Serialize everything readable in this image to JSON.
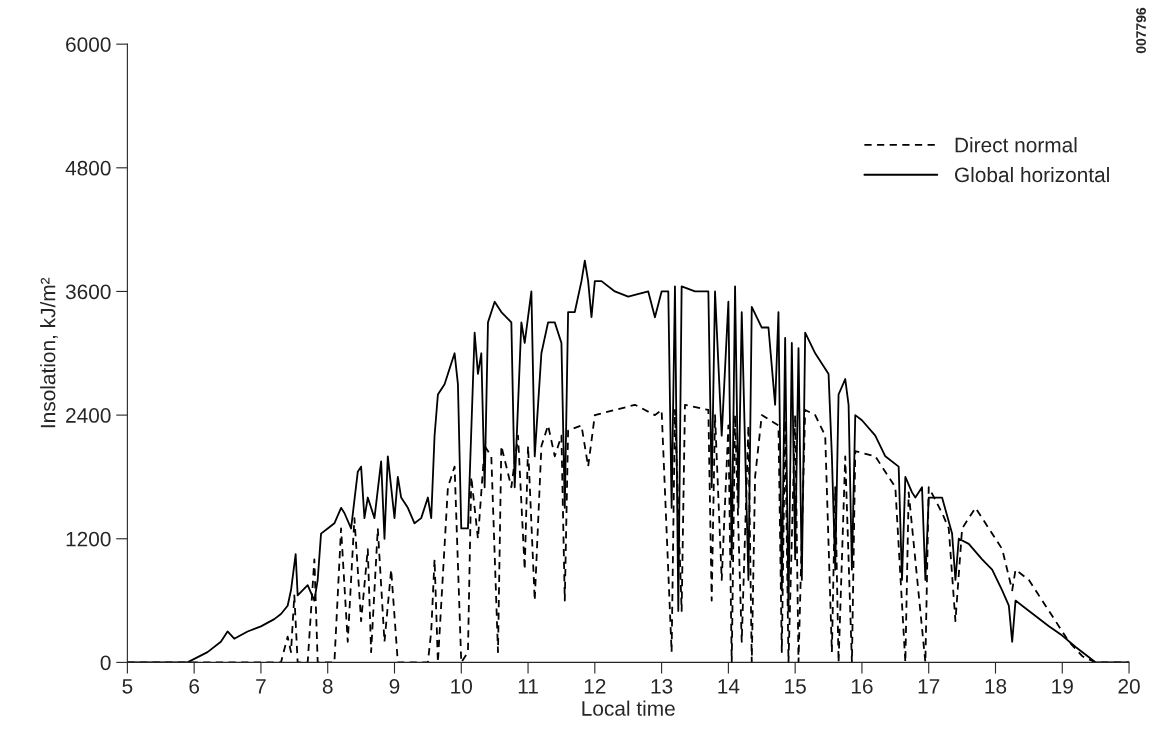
{
  "chart_data": {
    "type": "line",
    "xlabel": "Local time",
    "ylabel": "Insolation, kJ/m²",
    "xlim": [
      5,
      20
    ],
    "ylim": [
      0,
      6000
    ],
    "xticks": [
      5,
      6,
      7,
      8,
      9,
      10,
      11,
      12,
      13,
      14,
      15,
      16,
      17,
      18,
      19,
      20
    ],
    "yticks": [
      0,
      1200,
      2400,
      3600,
      4800,
      6000
    ],
    "grid": false,
    "legend": "top right",
    "marker": "none",
    "annotations": [
      "007796"
    ],
    "series": [
      {
        "name": "Direct normal",
        "color": "#000000",
        "line_style": "dashed",
        "x": [
          5,
          7.3,
          7.4,
          7.45,
          7.5,
          7.55,
          7.7,
          7.8,
          7.85,
          8.1,
          8.2,
          8.3,
          8.4,
          8.5,
          8.6,
          8.65,
          8.75,
          8.85,
          8.95,
          9.05,
          9.5,
          9.55,
          9.6,
          9.65,
          9.8,
          9.9,
          10.0,
          10.1,
          10.15,
          10.25,
          10.35,
          10.45,
          10.55,
          10.6,
          10.75,
          10.85,
          10.95,
          11.0,
          11.1,
          11.2,
          11.3,
          11.4,
          11.5,
          11.55,
          11.6,
          11.8,
          11.9,
          12.0,
          12.3,
          12.6,
          12.9,
          13.0,
          13.15,
          13.2,
          13.3,
          13.35,
          13.7,
          13.75,
          13.8,
          13.9,
          14.0,
          14.05,
          14.1,
          14.2,
          14.3,
          14.35,
          14.4,
          14.5,
          14.75,
          14.8,
          14.85,
          14.9,
          15.0,
          15.05,
          15.15,
          15.3,
          15.45,
          15.55,
          15.6,
          15.65,
          15.75,
          15.85,
          15.9,
          16.2,
          16.5,
          16.65,
          16.7,
          16.95,
          17.0,
          17.2,
          17.3,
          17.4,
          17.5,
          17.7,
          17.9,
          18.1,
          18.25,
          18.3,
          18.5,
          18.8,
          19.1,
          19.3,
          19.5,
          20
        ],
        "values": [
          0,
          0,
          250,
          100,
          650,
          0,
          0,
          1000,
          0,
          0,
          1300,
          200,
          1400,
          400,
          1100,
          100,
          1300,
          200,
          900,
          0,
          0,
          300,
          1000,
          0,
          1700,
          1900,
          0,
          100,
          1800,
          1200,
          2100,
          2000,
          100,
          2100,
          1700,
          2200,
          900,
          2100,
          600,
          2100,
          2300,
          2000,
          2200,
          600,
          2250,
          2300,
          1900,
          2400,
          2450,
          2500,
          2400,
          2450,
          100,
          2450,
          500,
          2500,
          2450,
          600,
          2400,
          800,
          2300,
          0,
          2400,
          200,
          2300,
          0,
          1800,
          2400,
          2300,
          100,
          2350,
          0,
          2400,
          0,
          2450,
          2400,
          2200,
          100,
          1700,
          0,
          2000,
          0,
          2050,
          2000,
          1700,
          0,
          1650,
          0,
          1700,
          1450,
          1300,
          400,
          1300,
          1500,
          1300,
          1100,
          700,
          900,
          800,
          500,
          200,
          60,
          0,
          0
        ]
      },
      {
        "name": "Global horizontal",
        "color": "#000000",
        "line_style": "solid",
        "x": [
          5,
          5.9,
          6.2,
          6.4,
          6.5,
          6.6,
          6.8,
          7.0,
          7.2,
          7.3,
          7.4,
          7.45,
          7.52,
          7.55,
          7.7,
          7.8,
          7.85,
          7.9,
          8.0,
          8.1,
          8.2,
          8.25,
          8.35,
          8.45,
          8.5,
          8.55,
          8.6,
          8.7,
          8.8,
          8.85,
          8.9,
          9.0,
          9.05,
          9.1,
          9.2,
          9.3,
          9.4,
          9.5,
          9.55,
          9.6,
          9.65,
          9.75,
          9.85,
          9.9,
          9.95,
          10.0,
          10.1,
          10.2,
          10.25,
          10.3,
          10.35,
          10.4,
          10.5,
          10.6,
          10.75,
          10.8,
          10.9,
          10.95,
          11.05,
          11.1,
          11.2,
          11.3,
          11.4,
          11.5,
          11.55,
          11.6,
          11.7,
          11.8,
          11.85,
          11.9,
          11.95,
          12.0,
          12.1,
          12.3,
          12.5,
          12.8,
          12.9,
          13.0,
          13.1,
          13.15,
          13.2,
          13.25,
          13.3,
          13.5,
          13.7,
          13.75,
          13.8,
          13.9,
          14.0,
          14.05,
          14.1,
          14.15,
          14.2,
          14.3,
          14.35,
          14.5,
          14.6,
          14.7,
          14.75,
          14.8,
          14.85,
          14.9,
          14.95,
          15.0,
          15.05,
          15.1,
          15.15,
          15.3,
          15.45,
          15.5,
          15.55,
          15.6,
          15.65,
          15.75,
          15.8,
          15.85,
          15.9,
          16.0,
          16.2,
          16.35,
          16.55,
          16.6,
          16.65,
          16.75,
          16.8,
          16.9,
          16.95,
          17.0,
          17.2,
          17.35,
          17.4,
          17.45,
          17.6,
          17.8,
          17.95,
          18.1,
          18.2,
          18.25,
          18.3,
          18.4,
          18.6,
          18.8,
          19.0,
          19.2,
          19.4,
          19.5,
          20
        ],
        "values": [
          0,
          0,
          100,
          200,
          300,
          230,
          300,
          350,
          420,
          470,
          550,
          700,
          1050,
          650,
          750,
          600,
          800,
          1250,
          1300,
          1350,
          1500,
          1450,
          1300,
          1850,
          1900,
          1400,
          1600,
          1400,
          1950,
          1200,
          2000,
          1400,
          1800,
          1600,
          1500,
          1350,
          1400,
          1600,
          1400,
          2200,
          2600,
          2700,
          2900,
          3000,
          2700,
          1300,
          1300,
          3200,
          2800,
          3000,
          1700,
          3300,
          3500,
          3400,
          3300,
          1700,
          3300,
          3100,
          3600,
          2000,
          3000,
          3300,
          3300,
          3100,
          1500,
          3400,
          3400,
          3700,
          3900,
          3700,
          3350,
          3700,
          3700,
          3600,
          3550,
          3600,
          3350,
          3600,
          3600,
          1500,
          3650,
          500,
          3650,
          3600,
          3600,
          1700,
          3600,
          2200,
          3500,
          1000,
          3650,
          1500,
          3400,
          800,
          3450,
          3250,
          3250,
          2500,
          3400,
          700,
          3150,
          500,
          3100,
          1000,
          3050,
          800,
          3200,
          3000,
          2850,
          2800,
          2000,
          900,
          2600,
          2750,
          2500,
          900,
          2400,
          2350,
          2200,
          2000,
          1900,
          800,
          1800,
          1650,
          1600,
          1700,
          800,
          1600,
          1600,
          1250,
          800,
          1200,
          1150,
          1000,
          900,
          700,
          550,
          200,
          600,
          550,
          450,
          350,
          260,
          150,
          50,
          0,
          0
        ]
      }
    ]
  }
}
